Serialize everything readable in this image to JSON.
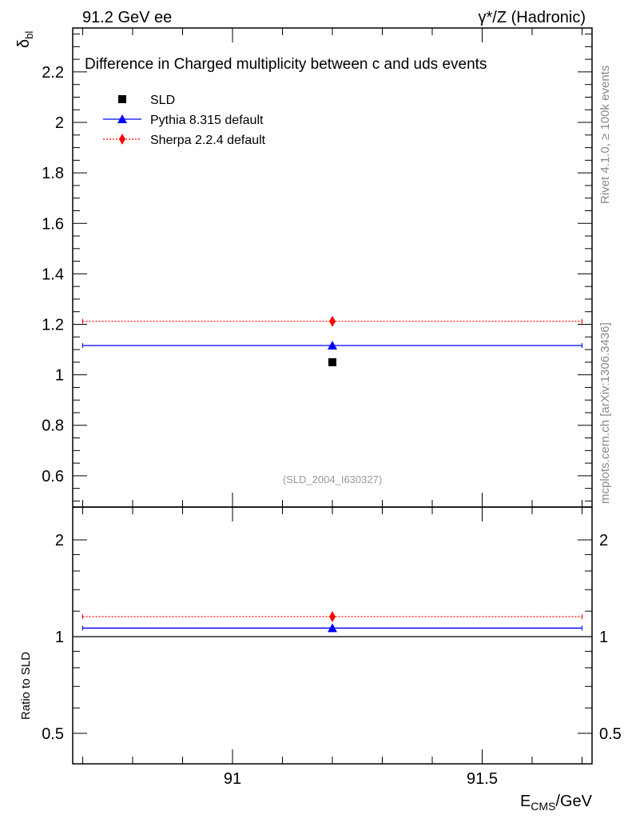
{
  "header": {
    "left": "91.2 GeV ee",
    "right": "γ*/Z (Hadronic)"
  },
  "side_labels": {
    "rivet": "Rivet 4.1.0, ≥ 100k events",
    "mcplots": "mcplots.cern.ch [arXiv:1306.3436]"
  },
  "chart_data": {
    "type": "scatter",
    "title": "Difference in Charged multiplicity between c and uds events",
    "ylabel_main": "δ",
    "ylabel_main_sub": "bl",
    "ylabel_ratio": "Ratio to SLD",
    "xlabel": "E",
    "xlabel_sub": "CMS",
    "xlabel_suffix": "/GeV",
    "analysis_id": "(SLD_2004_I630327)",
    "xlim": [
      90.68,
      91.72
    ],
    "ylim_main": [
      0.476,
      2.374
    ],
    "ylim_ratio": [
      0.402,
      2.53
    ],
    "ratio_scale": "log",
    "x_ticks": [
      "91",
      "91.5"
    ],
    "x_tick_values": [
      91,
      91.5
    ],
    "y_ticks_main": [
      "0.6",
      "0.8",
      "1",
      "1.2",
      "1.4",
      "1.6",
      "1.8",
      "2",
      "2.2"
    ],
    "y_tick_values_main": [
      0.6,
      0.8,
      1.0,
      1.2,
      1.4,
      1.6,
      1.8,
      2.0,
      2.2
    ],
    "y_ticks_ratio": [
      "0.5",
      "1",
      "2"
    ],
    "y_tick_values_ratio": [
      0.5,
      1,
      2
    ],
    "legend_position": "top-left",
    "series": [
      {
        "name": "SLD",
        "color": "#000000",
        "marker": "square",
        "line": "none",
        "x": 91.2,
        "y": 1.05,
        "xerr": [
          90.7,
          91.7
        ],
        "ratio": 1.0
      },
      {
        "name": "Pythia 8.315 default",
        "color": "#0000ff",
        "marker": "triangle",
        "line": "solid",
        "x": 91.2,
        "y": 1.116,
        "xerr": [
          90.7,
          91.7
        ],
        "ratio": 1.063
      },
      {
        "name": "Sherpa 2.2.4 default",
        "color": "#ff0000",
        "marker": "diamond",
        "line": "dotted",
        "x": 91.2,
        "y": 1.212,
        "xerr": [
          90.7,
          91.7
        ],
        "ratio": 1.154
      }
    ]
  }
}
